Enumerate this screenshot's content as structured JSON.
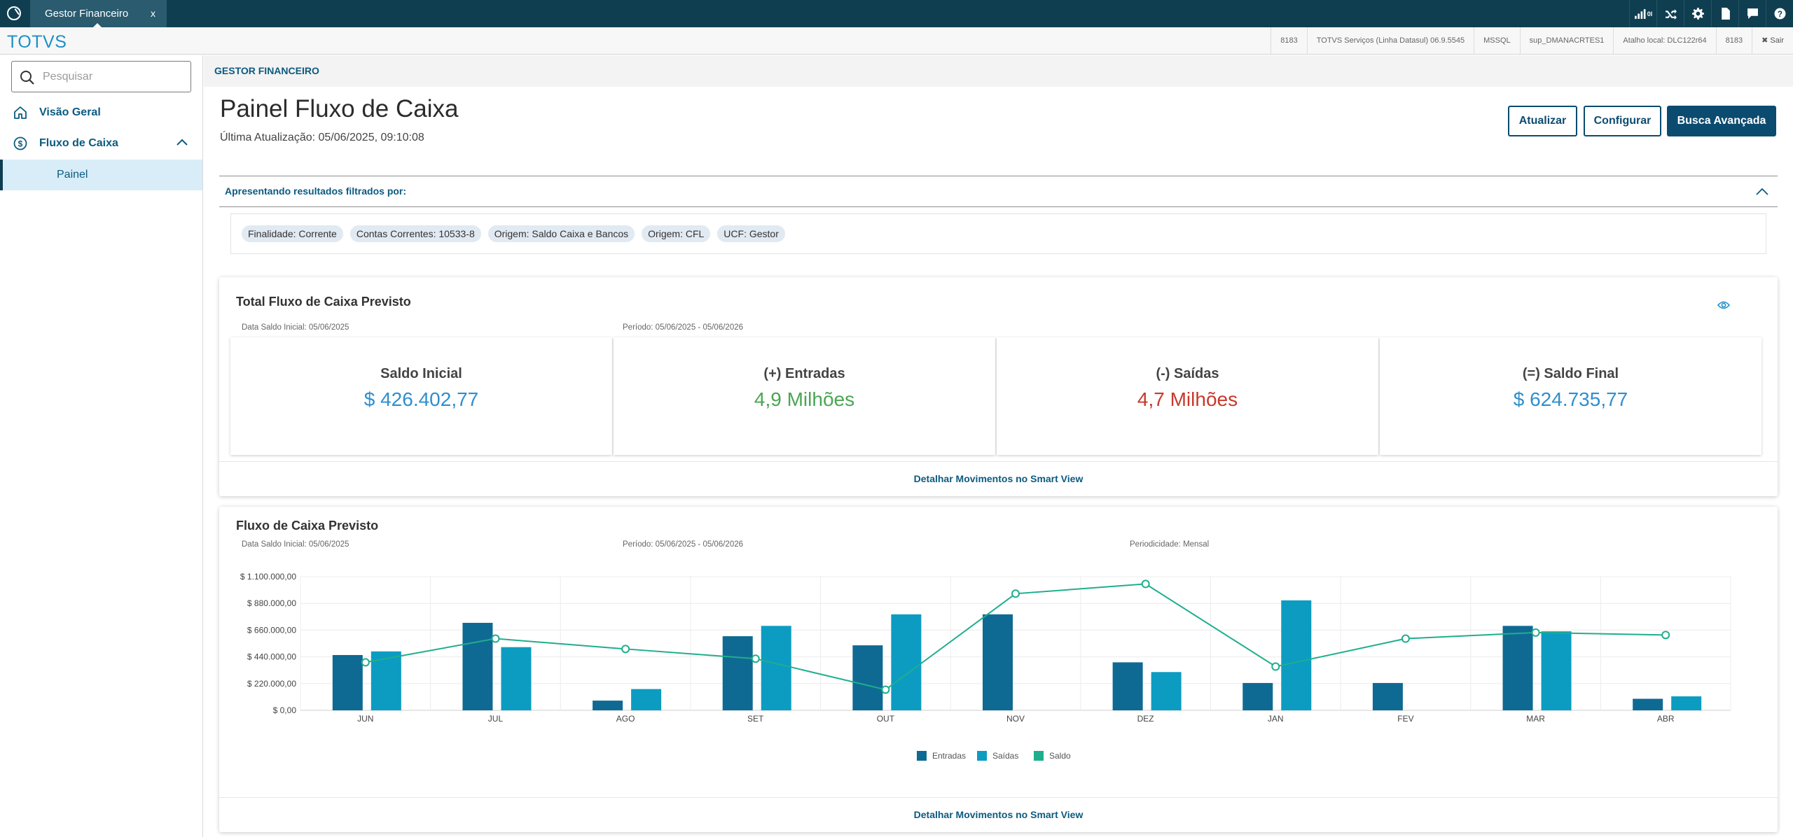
{
  "topbar": {
    "tab_label": "Gestor Financeiro",
    "tab_close": "x",
    "icons": [
      "signal-icon",
      "shuffle-icon",
      "gear-icon",
      "document-icon",
      "chat-icon",
      "help-icon"
    ],
    "signal_badge": "0l"
  },
  "infobar": {
    "brand": "TOTVS",
    "items": [
      "8183",
      "TOTVS Serviços (Linha Datasul) 06.9.5545",
      "MSSQL",
      "sup_DMANACRTES1",
      "Atalho local: DLC122r64",
      "8183",
      "✖ Sair"
    ]
  },
  "sidebar": {
    "search_placeholder": "Pesquisar",
    "items": [
      {
        "label": "Visão Geral"
      },
      {
        "label": "Fluxo de Caixa"
      }
    ],
    "sub_item": "Painel"
  },
  "breadcrumb": "GESTOR FINANCEIRO",
  "page": {
    "title": "Painel Fluxo de Caixa",
    "updated": "Última Atualização: 05/06/2025, 09:10:08",
    "buttons": {
      "refresh": "Atualizar",
      "configure": "Configurar",
      "advanced_search": "Busca Avançada"
    }
  },
  "filters": {
    "heading": "Apresentando resultados filtrados por:",
    "chips": [
      "Finalidade: Corrente",
      "Contas Correntes: 10533-8",
      "Origem: Saldo Caixa e Bancos",
      "Origem: CFL",
      "UCF: Gestor"
    ]
  },
  "total_card": {
    "title": "Total Fluxo de Caixa Previsto",
    "data_saldo": "Data Saldo Inicial: 05/06/2025",
    "periodo": "Período: 05/06/2025 - 05/06/2026",
    "kpis": [
      {
        "label": "Saldo Inicial",
        "value": "$ 426.402,77",
        "color": "#2e8fce"
      },
      {
        "label": "(+) Entradas",
        "value": "4,9 Milhões",
        "color": "#4aa652"
      },
      {
        "label": "(-) Saídas",
        "value": "4,7 Milhões",
        "color": "#c8392b"
      },
      {
        "label": "(=) Saldo Final",
        "value": "$ 624.735,77",
        "color": "#2e8fce"
      }
    ],
    "link": "Detalhar Movimentos no Smart View"
  },
  "chart_card": {
    "title": "Fluxo de Caixa Previsto",
    "data_saldo": "Data Saldo Inicial: 05/06/2025",
    "periodo": "Período: 05/06/2025 - 05/06/2026",
    "periodicidade": "Periodicidade: Mensal",
    "link": "Detalhar Movimentos no Smart View"
  },
  "chart_data": {
    "type": "bar",
    "title": "Fluxo de Caixa Previsto",
    "categories": [
      "JUN",
      "JUL",
      "AGO",
      "SET",
      "OUT",
      "NOV",
      "DEZ",
      "JAN",
      "FEV",
      "MAR",
      "ABR"
    ],
    "y_ticks": [
      "$ 0,00",
      "$ 220.000,00",
      "$ 440.000,00",
      "$ 660.000,00",
      "$ 880.000,00",
      "$ 1.100.000,00"
    ],
    "ylim": [
      0,
      1100000
    ],
    "series": [
      {
        "name": "Entradas",
        "type": "bar",
        "color": "#0f6a93",
        "values": [
          455000,
          720000,
          80000,
          610000,
          535000,
          790000,
          395000,
          225000,
          225000,
          695000,
          95000
        ]
      },
      {
        "name": "Saídas",
        "type": "bar",
        "color": "#0c9cc2",
        "values": [
          485000,
          520000,
          175000,
          695000,
          790000,
          0,
          315000,
          905000,
          0,
          650000,
          115000
        ]
      },
      {
        "name": "Saldo",
        "type": "line",
        "color": "#1fae8c",
        "values": [
          395000,
          590000,
          505000,
          425000,
          170000,
          960000,
          1040000,
          360000,
          590000,
          640000,
          620000
        ]
      }
    ]
  }
}
